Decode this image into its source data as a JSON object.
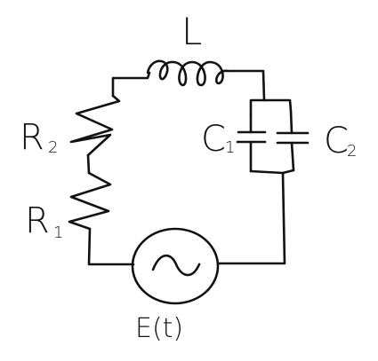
{
  "diagram": {
    "type": "circuit",
    "stroke_color": "#111111",
    "background": "#ffffff",
    "labels": {
      "inductor": "L",
      "resistor_2": "R",
      "resistor_2_sub": "2",
      "resistor_1": "R",
      "resistor_1_sub": "1",
      "capacitor_1": "C",
      "capacitor_1_sub": "1",
      "capacitor_2": "C",
      "capacitor_2_sub": "2",
      "source": "E(t)"
    }
  }
}
